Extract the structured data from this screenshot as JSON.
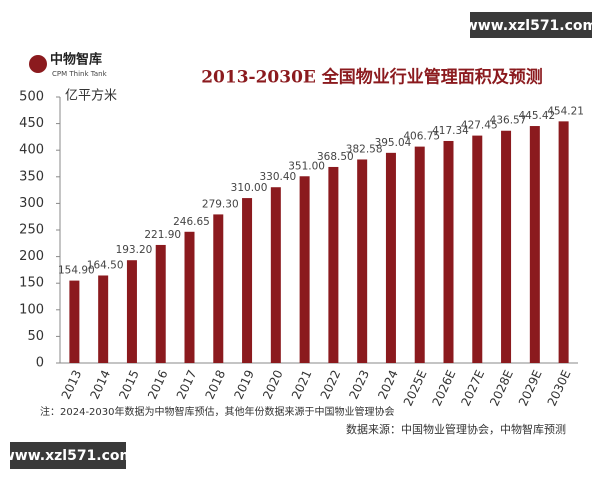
{
  "chart_data": {
    "type": "bar",
    "logo": "中物智库",
    "logo_subtitle": "CPM Think Tank",
    "title": "2013-2030E 全国物业行业管理面积及预测",
    "y_axis_label": "亿平方米",
    "categories": [
      "2013",
      "2014",
      "2015",
      "2016",
      "2017",
      "2018",
      "2019",
      "2020",
      "2021",
      "2022",
      "2023",
      "2024",
      "2025E",
      "2026E",
      "2027E",
      "2028E",
      "2029E",
      "2030E"
    ],
    "values": [
      154.9,
      164.5,
      193.2,
      221.9,
      246.65,
      279.3,
      310.0,
      330.4,
      351.0,
      368.5,
      382.58,
      395.04,
      406.75,
      417.34,
      427.45,
      436.57,
      445.42,
      454.21
    ],
    "value_labels": [
      "154.90",
      "164.50",
      "193.20",
      "221.90",
      "246.65",
      "279.30",
      "310.00",
      "330.40",
      "351.00",
      "368.50",
      "382.58",
      "395.04",
      "406.75",
      "417.34",
      "427.45",
      "436.57",
      "445.42",
      "454.21"
    ],
    "color": "#8b1a1e",
    "ylim": [
      0,
      500
    ],
    "yticks": [
      0,
      50,
      100,
      150,
      200,
      250,
      300,
      350,
      400,
      450,
      500
    ],
    "grid": false,
    "note": "注：2024-2030年数据为中物智库预估，其他年份数据来源于中国物业管理协会",
    "source": "数据来源：中国物业管理协会，中物智库预测",
    "watermark": "www.xzl571.com"
  }
}
